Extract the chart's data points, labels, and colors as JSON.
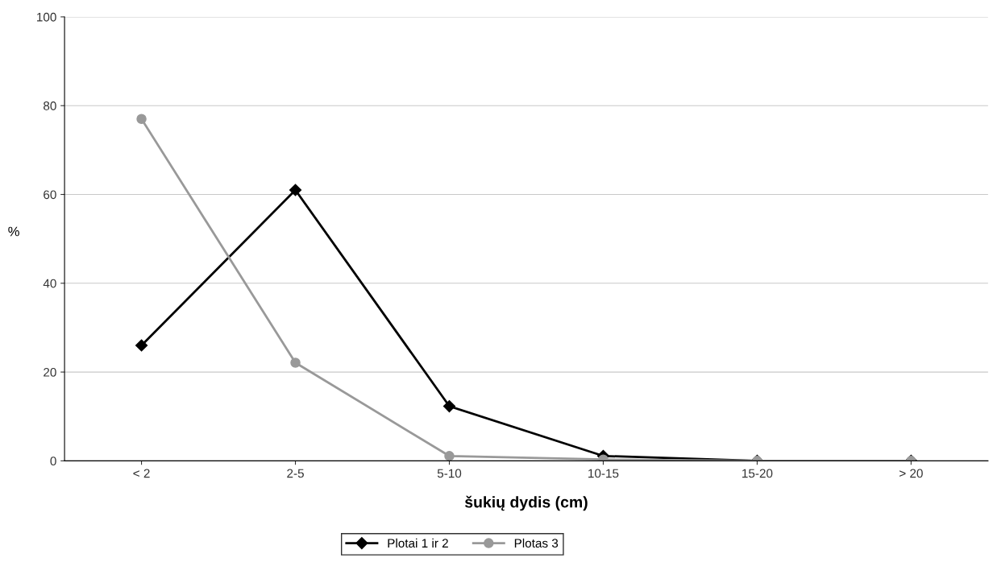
{
  "chart_data": {
    "type": "line",
    "xlabel": "šukių dydis (cm)",
    "ylabel": "%",
    "categories": [
      "< 2",
      "2-5",
      "5-10",
      "10-15",
      "15-20",
      "> 20"
    ],
    "series": [
      {
        "name": "Plotai 1 ir 2",
        "color": "#000000",
        "marker": "diamond",
        "values": [
          26,
          61,
          12.3,
          1.1,
          0,
          0
        ]
      },
      {
        "name": "Plotas 3",
        "color": "#999999",
        "marker": "circle",
        "values": [
          77,
          22.1,
          1.1,
          0.3,
          0,
          0
        ]
      }
    ],
    "ylim": [
      0,
      100
    ],
    "yticks": [
      0,
      20,
      40,
      60,
      80,
      100
    ],
    "grid": "y",
    "legend": "bottom",
    "line_style": "solid"
  }
}
